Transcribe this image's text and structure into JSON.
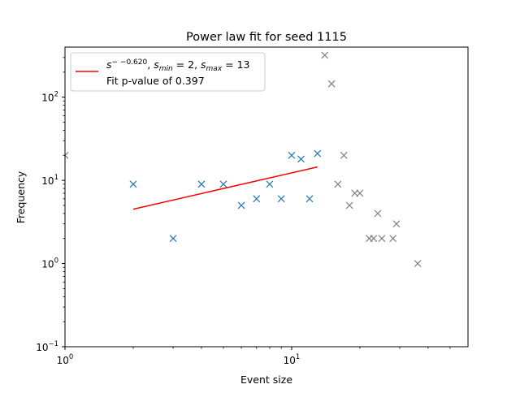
{
  "chart_data": {
    "type": "scatter",
    "title": "Power law fit for seed 1115",
    "xlabel": "Event size",
    "ylabel": "Frequency",
    "xscale": "log",
    "yscale": "log",
    "xlim": [
      1,
      60
    ],
    "ylim": [
      0.1,
      400
    ],
    "x_ticks": [
      {
        "value": 1,
        "label": "10^0"
      },
      {
        "value": 10,
        "label": "10^1"
      }
    ],
    "y_ticks": [
      {
        "value": 0.1,
        "label": "10^-1"
      },
      {
        "value": 1,
        "label": "10^0"
      },
      {
        "value": 10,
        "label": "10^1"
      },
      {
        "value": 100,
        "label": "10^2"
      }
    ],
    "series": [
      {
        "role": "fitted-range",
        "color": "#1f77b4",
        "marker": "x",
        "points": [
          [
            2,
            9
          ],
          [
            3,
            2
          ],
          [
            4,
            9
          ],
          [
            5,
            9
          ],
          [
            6,
            5
          ],
          [
            7,
            6
          ],
          [
            8,
            9
          ],
          [
            9,
            6
          ],
          [
            10,
            20
          ],
          [
            11,
            18
          ],
          [
            12,
            6
          ],
          [
            13,
            21
          ]
        ]
      },
      {
        "role": "outside-range",
        "color": "#808080",
        "marker": "x",
        "points": [
          [
            1,
            20
          ],
          [
            14,
            320
          ],
          [
            15,
            145
          ],
          [
            16,
            9
          ],
          [
            17,
            20
          ],
          [
            18,
            5
          ],
          [
            19,
            7
          ],
          [
            20,
            7
          ],
          [
            22,
            2
          ],
          [
            23,
            2
          ],
          [
            24,
            4
          ],
          [
            25,
            2
          ],
          [
            28,
            2
          ],
          [
            29,
            3
          ],
          [
            36,
            1
          ]
        ]
      },
      {
        "role": "fit-line",
        "color": "#ff0000",
        "marker": "line",
        "points": [
          [
            2,
            4.5
          ],
          [
            13,
            14.5
          ]
        ]
      }
    ],
    "legend": {
      "position": "upper-left",
      "entries": [
        {
          "color": "#ff0000",
          "exponent": "− −0.620",
          "smin_value": "2",
          "smax_value": "13",
          "text2": "Fit p-value of 0.397"
        }
      ]
    }
  }
}
